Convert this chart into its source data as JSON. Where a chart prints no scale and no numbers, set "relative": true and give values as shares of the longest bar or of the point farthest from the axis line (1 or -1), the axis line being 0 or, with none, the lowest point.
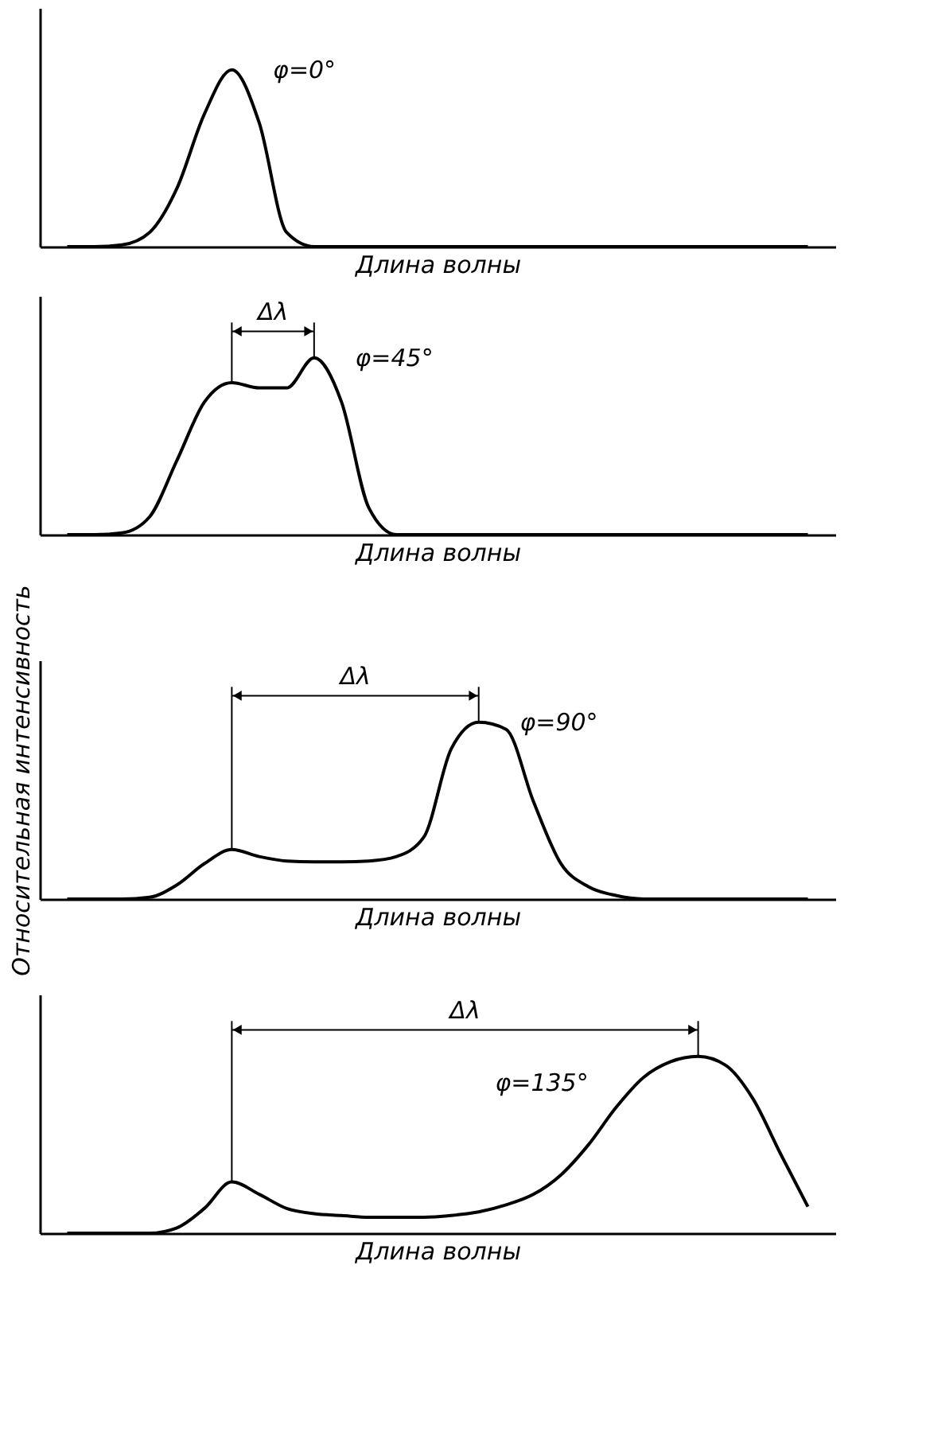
{
  "chart_data": [
    {
      "type": "line",
      "relative": true,
      "color": "#000000",
      "xlabel": "Длина волны",
      "annotations": [
        "φ=0°"
      ],
      "categories": [
        null,
        null,
        null,
        null,
        null,
        null,
        null,
        null,
        null,
        null,
        null,
        null,
        null,
        null,
        null,
        null,
        null,
        null,
        null,
        null,
        null,
        null,
        null,
        null,
        null,
        null,
        null,
        null
      ],
      "values": [
        0,
        0,
        0.01,
        0.08,
        0.33,
        0.75,
        1,
        0.7,
        0.08,
        0,
        0,
        0,
        0,
        0,
        0,
        0,
        0,
        0,
        0,
        0,
        0,
        0,
        0,
        0,
        0,
        0,
        0,
        0
      ]
    },
    {
      "type": "line",
      "relative": true,
      "color": "#000000",
      "xlabel": "Длина волны",
      "annotations": [
        "φ=45°",
        "Δλ"
      ],
      "categories": [
        null,
        null,
        null,
        null,
        null,
        null,
        null,
        null,
        null,
        null,
        null,
        null,
        null,
        null,
        null,
        null,
        null,
        null,
        null,
        null,
        null,
        null,
        null,
        null,
        null,
        null,
        null,
        null
      ],
      "values": [
        0,
        0,
        0.01,
        0.1,
        0.42,
        0.75,
        0.86,
        0.83,
        0.83,
        1,
        0.75,
        0.15,
        0,
        0,
        0,
        0,
        0,
        0,
        0,
        0,
        0,
        0,
        0,
        0,
        0,
        0,
        0,
        0
      ]
    },
    {
      "type": "line",
      "relative": true,
      "color": "#000000",
      "xlabel": "Длина волны",
      "ylabel": "Относительная интенсивность",
      "annotations": [
        "φ=90°",
        "Δλ"
      ],
      "categories": [
        null,
        null,
        null,
        null,
        null,
        null,
        null,
        null,
        null,
        null,
        null,
        null,
        null,
        null,
        null,
        null,
        null,
        null,
        null,
        null,
        null,
        null,
        null,
        null,
        null,
        null,
        null,
        null
      ],
      "values": [
        0,
        0,
        0,
        0.01,
        0.08,
        0.2,
        0.28,
        0.24,
        0.215,
        0.21,
        0.21,
        0.215,
        0.24,
        0.35,
        0.85,
        1,
        0.96,
        0.55,
        0.2,
        0.07,
        0.02,
        0,
        0,
        0,
        0,
        0,
        0,
        0
      ]
    },
    {
      "type": "line",
      "relative": true,
      "color": "#000000",
      "xlabel": "Длина волны",
      "annotations": [
        "φ=135°",
        "Δλ"
      ],
      "categories": [
        null,
        null,
        null,
        null,
        null,
        null,
        null,
        null,
        null,
        null,
        null,
        null,
        null,
        null,
        null,
        null,
        null,
        null,
        null,
        null,
        null,
        null,
        null,
        null,
        null,
        null,
        null,
        null
      ],
      "values": [
        0,
        0,
        0,
        0,
        0.03,
        0.14,
        0.29,
        0.22,
        0.14,
        0.11,
        0.1,
        0.09,
        0.09,
        0.09,
        0.1,
        0.12,
        0.16,
        0.22,
        0.33,
        0.5,
        0.71,
        0.88,
        0.97,
        1,
        0.95,
        0.76,
        0.45,
        0.15
      ]
    }
  ]
}
